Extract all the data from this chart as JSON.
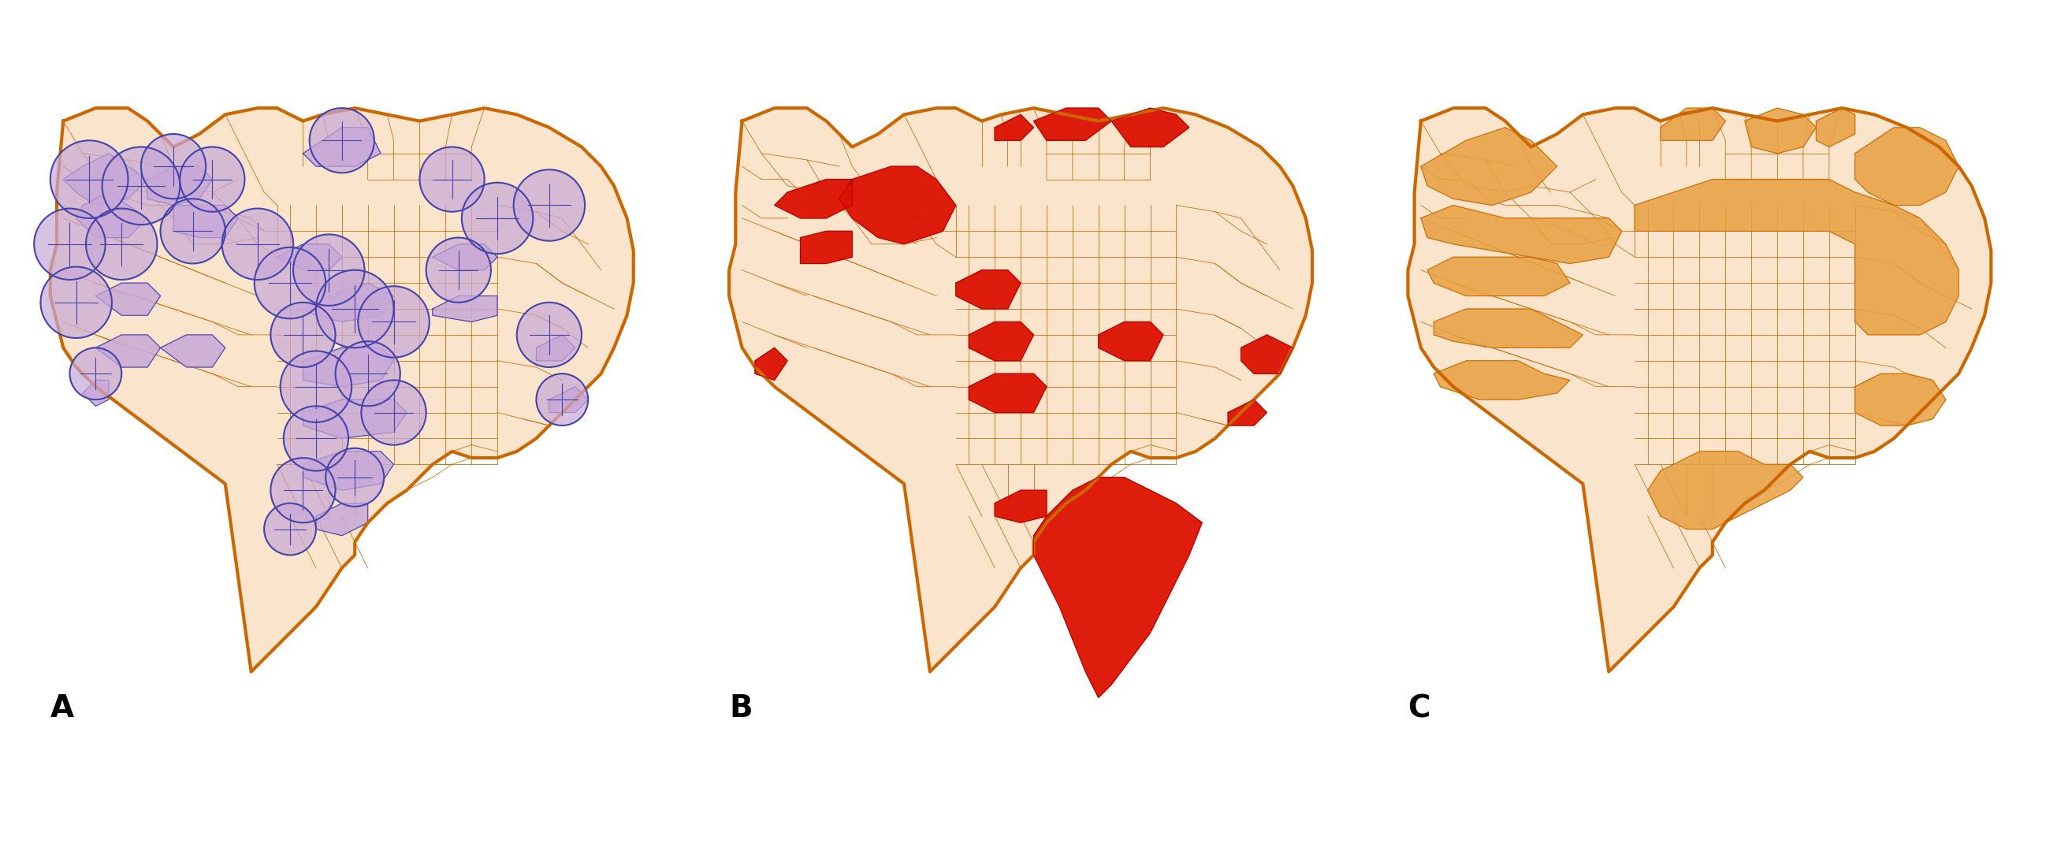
{
  "figure_width": 26.1,
  "figure_height": 10.8,
  "background_color": "#ffffff",
  "panel_labels": [
    "A",
    "B",
    "C"
  ],
  "panel_label_fontsize": 28,
  "panel_label_fontweight": "bold",
  "map_bg_fill": "#fae5cc",
  "map_bg_edge": "#cc6600",
  "map_bg_linewidth": 2.5,
  "neighborhood_edge": "#cc6600",
  "neighborhood_linewidth": 0.8,
  "map_A_fill": "#c8a8d8",
  "map_A_edge": "#4444aa",
  "map_A_linewidth": 1.2,
  "map_B_fill_light": "#f5c0a0",
  "map_B_fill_red": "#dd1100",
  "map_B_edge": "#cc6600",
  "map_C_fill_orange": "#e8a040",
  "map_C_fill_light": "#f5dcc0",
  "map_C_edge": "#cc6600",
  "outer_border_color": "#cc6600",
  "outer_border_linewidth": 3.0,
  "panel_border_color": "#888888",
  "panel_border_linewidth": 1.5
}
